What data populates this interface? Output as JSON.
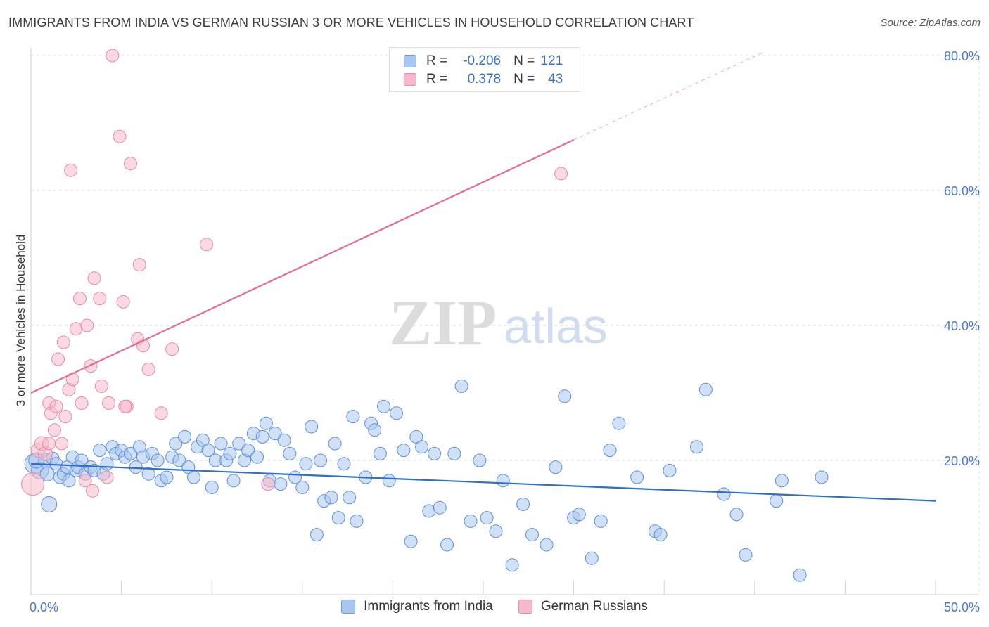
{
  "title": "IMMIGRANTS FROM INDIA VS GERMAN RUSSIAN 3 OR MORE VEHICLES IN HOUSEHOLD CORRELATION CHART",
  "source": "Source: ZipAtlas.com",
  "watermark": {
    "zip": "ZIP",
    "atlas": "atlas"
  },
  "legend": {
    "r_label": "R =",
    "n_label": "N =",
    "rows": [
      {
        "r": "-0.206",
        "n": "121",
        "color": "#a9c6ee",
        "border": "#6f9bd9"
      },
      {
        "r": "0.378",
        "n": "43",
        "color": "#f6b9cb",
        "border": "#e58aa7"
      }
    ]
  },
  "bottom_legend": [
    "Immigrants from India",
    "German Russians"
  ],
  "chart_data": {
    "type": "scatter",
    "xlabel": "",
    "ylabel": "3 or more Vehicles in Household",
    "xlim": [
      0,
      50
    ],
    "ylim": [
      0,
      80
    ],
    "x_tick_labels": [
      "0.0%",
      "50.0%"
    ],
    "y_tick_labels": [
      "20.0%",
      "40.0%",
      "60.0%",
      "80.0%"
    ],
    "y_ticks": [
      20,
      40,
      60,
      80
    ],
    "grid": "horizontal-dashed",
    "series": [
      {
        "name": "Immigrants from India",
        "color": "#a9c6ee",
        "stroke": "#5e8fd3",
        "trend_color": "#2f6fc9",
        "trend": [
          [
            0,
            19.5
          ],
          [
            50,
            14.0
          ]
        ],
        "points": [
          [
            0.2,
            19.5,
            14
          ],
          [
            0.5,
            18.5,
            12
          ],
          [
            0.8,
            20.0,
            10
          ],
          [
            0.9,
            18.0,
            10
          ],
          [
            1.2,
            20.3,
            9
          ],
          [
            1.4,
            19.5,
            9
          ],
          [
            1.6,
            17.5,
            9
          ],
          [
            1.8,
            18.0,
            9
          ],
          [
            2.0,
            19.0,
            9
          ],
          [
            2.1,
            17.0,
            9
          ],
          [
            2.3,
            20.5,
            9
          ],
          [
            2.5,
            18.5,
            9
          ],
          [
            2.6,
            19.0,
            9
          ],
          [
            2.8,
            20.0,
            9
          ],
          [
            3.0,
            18.0,
            9
          ],
          [
            3.3,
            19.0,
            9
          ],
          [
            3.5,
            18.5,
            9
          ],
          [
            3.8,
            21.5,
            9
          ],
          [
            4.0,
            18.0,
            9
          ],
          [
            4.2,
            19.5,
            9
          ],
          [
            4.5,
            22.0,
            9
          ],
          [
            4.7,
            21.0,
            9
          ],
          [
            5.0,
            21.5,
            9
          ],
          [
            5.2,
            20.5,
            9
          ],
          [
            5.5,
            21.0,
            9
          ],
          [
            5.8,
            19.0,
            9
          ],
          [
            6.0,
            22.0,
            9
          ],
          [
            6.2,
            20.5,
            9
          ],
          [
            6.5,
            18.0,
            9
          ],
          [
            6.7,
            21.0,
            9
          ],
          [
            7.0,
            20.0,
            9
          ],
          [
            7.2,
            17.0,
            9
          ],
          [
            7.5,
            17.5,
            9
          ],
          [
            7.8,
            20.5,
            9
          ],
          [
            8.0,
            22.5,
            9
          ],
          [
            8.2,
            20.0,
            9
          ],
          [
            8.5,
            23.5,
            9
          ],
          [
            8.7,
            19.0,
            9
          ],
          [
            9.0,
            17.5,
            9
          ],
          [
            9.2,
            22.0,
            9
          ],
          [
            9.5,
            23.0,
            9
          ],
          [
            9.8,
            21.5,
            9
          ],
          [
            10.0,
            16.0,
            9
          ],
          [
            10.2,
            20.0,
            9
          ],
          [
            10.5,
            22.5,
            9
          ],
          [
            10.8,
            20.0,
            9
          ],
          [
            11.0,
            21.0,
            9
          ],
          [
            11.2,
            17.0,
            9
          ],
          [
            11.5,
            22.5,
            9
          ],
          [
            11.8,
            20.0,
            9
          ],
          [
            12.0,
            21.5,
            9
          ],
          [
            12.3,
            24.0,
            9
          ],
          [
            12.5,
            20.5,
            9
          ],
          [
            12.8,
            23.5,
            9
          ],
          [
            13.0,
            25.5,
            9
          ],
          [
            13.2,
            17.0,
            9
          ],
          [
            13.5,
            24.0,
            9
          ],
          [
            13.8,
            16.5,
            9
          ],
          [
            14.0,
            23.0,
            9
          ],
          [
            14.3,
            21.0,
            9
          ],
          [
            14.6,
            17.5,
            9
          ],
          [
            15.0,
            16.0,
            9
          ],
          [
            15.2,
            19.5,
            9
          ],
          [
            15.5,
            25.0,
            9
          ],
          [
            15.8,
            9.0,
            9
          ],
          [
            16.0,
            20.0,
            9
          ],
          [
            16.2,
            14.0,
            9
          ],
          [
            16.6,
            14.5,
            9
          ],
          [
            16.8,
            22.5,
            9
          ],
          [
            17.0,
            11.5,
            9
          ],
          [
            17.3,
            19.5,
            9
          ],
          [
            17.6,
            14.5,
            9
          ],
          [
            17.8,
            26.5,
            9
          ],
          [
            18.0,
            11.0,
            9
          ],
          [
            18.5,
            17.5,
            9
          ],
          [
            18.8,
            25.5,
            9
          ],
          [
            19.0,
            24.5,
            9
          ],
          [
            19.3,
            21.0,
            9
          ],
          [
            19.5,
            28.0,
            9
          ],
          [
            19.8,
            17.0,
            9
          ],
          [
            20.2,
            27.0,
            9
          ],
          [
            20.6,
            21.5,
            9
          ],
          [
            21.0,
            8.0,
            9
          ],
          [
            21.3,
            23.5,
            9
          ],
          [
            21.6,
            22.0,
            9
          ],
          [
            22.0,
            12.5,
            9
          ],
          [
            22.3,
            21.0,
            9
          ],
          [
            22.6,
            13.0,
            9
          ],
          [
            23.0,
            7.5,
            9
          ],
          [
            23.4,
            21.0,
            9
          ],
          [
            23.8,
            31.0,
            9
          ],
          [
            24.3,
            11.0,
            9
          ],
          [
            24.8,
            20.0,
            9
          ],
          [
            25.2,
            11.5,
            9
          ],
          [
            25.7,
            9.5,
            9
          ],
          [
            26.1,
            17.0,
            9
          ],
          [
            26.6,
            4.5,
            9
          ],
          [
            27.2,
            13.5,
            9
          ],
          [
            27.7,
            9.0,
            9
          ],
          [
            28.5,
            7.5,
            9
          ],
          [
            29.0,
            19.0,
            9
          ],
          [
            29.5,
            29.5,
            9
          ],
          [
            30.0,
            11.5,
            9
          ],
          [
            30.3,
            12.0,
            9
          ],
          [
            31.0,
            5.5,
            9
          ],
          [
            31.5,
            11.0,
            9
          ],
          [
            32.0,
            21.5,
            9
          ],
          [
            32.5,
            25.5,
            9
          ],
          [
            33.5,
            17.5,
            9
          ],
          [
            34.5,
            9.5,
            9
          ],
          [
            34.8,
            9.0,
            9
          ],
          [
            35.3,
            18.5,
            9
          ],
          [
            36.8,
            22.0,
            9
          ],
          [
            37.3,
            30.5,
            9
          ],
          [
            38.3,
            15.0,
            9
          ],
          [
            39.0,
            12.0,
            9
          ],
          [
            39.5,
            6.0,
            9
          ],
          [
            41.2,
            14.0,
            9
          ],
          [
            41.5,
            17.0,
            9
          ],
          [
            42.5,
            3.0,
            9
          ],
          [
            43.7,
            17.5,
            9
          ],
          [
            0.3,
            20.0,
            11
          ],
          [
            1.0,
            13.5,
            11
          ]
        ]
      },
      {
        "name": "German Russians",
        "color": "#f6b9cb",
        "stroke": "#e58aa7",
        "trend_color": "#e46b95",
        "trend": [
          [
            0,
            30.0
          ],
          [
            30,
            67.5
          ]
        ],
        "trend_dashed": [
          [
            30,
            67.5
          ],
          [
            40.5,
            80.5
          ]
        ],
        "points": [
          [
            0.1,
            16.5,
            16
          ],
          [
            0.4,
            21.5,
            10
          ],
          [
            0.6,
            22.5,
            10
          ],
          [
            0.8,
            21.0,
            10
          ],
          [
            1.0,
            22.5,
            9
          ],
          [
            1.0,
            28.5,
            9
          ],
          [
            1.1,
            27.0,
            9
          ],
          [
            1.3,
            24.5,
            9
          ],
          [
            1.4,
            28.0,
            9
          ],
          [
            1.5,
            35.0,
            9
          ],
          [
            1.7,
            22.5,
            9
          ],
          [
            1.8,
            37.5,
            9
          ],
          [
            1.9,
            26.5,
            9
          ],
          [
            2.1,
            30.5,
            9
          ],
          [
            2.2,
            63.0,
            9
          ],
          [
            2.3,
            32.0,
            9
          ],
          [
            2.5,
            39.5,
            9
          ],
          [
            2.7,
            44.0,
            9
          ],
          [
            2.8,
            28.5,
            9
          ],
          [
            3.0,
            17.0,
            9
          ],
          [
            3.1,
            40.0,
            9
          ],
          [
            3.3,
            34.0,
            9
          ],
          [
            3.4,
            15.5,
            9
          ],
          [
            3.5,
            47.0,
            9
          ],
          [
            3.8,
            44.0,
            9
          ],
          [
            3.9,
            31.0,
            9
          ],
          [
            4.2,
            17.5,
            9
          ],
          [
            4.3,
            28.5,
            9
          ],
          [
            4.5,
            80.0,
            9
          ],
          [
            4.9,
            68.0,
            9
          ],
          [
            5.1,
            43.5,
            9
          ],
          [
            5.3,
            28.0,
            9
          ],
          [
            5.5,
            64.0,
            9
          ],
          [
            5.9,
            38.0,
            9
          ],
          [
            6.0,
            49.0,
            9
          ],
          [
            6.2,
            37.0,
            9
          ],
          [
            6.5,
            33.5,
            9
          ],
          [
            7.2,
            27.0,
            9
          ],
          [
            7.8,
            36.5,
            9
          ],
          [
            9.7,
            52.0,
            9
          ],
          [
            13.1,
            16.5,
            9
          ],
          [
            29.3,
            62.5,
            9
          ],
          [
            5.2,
            28.0,
            9
          ]
        ]
      }
    ]
  }
}
